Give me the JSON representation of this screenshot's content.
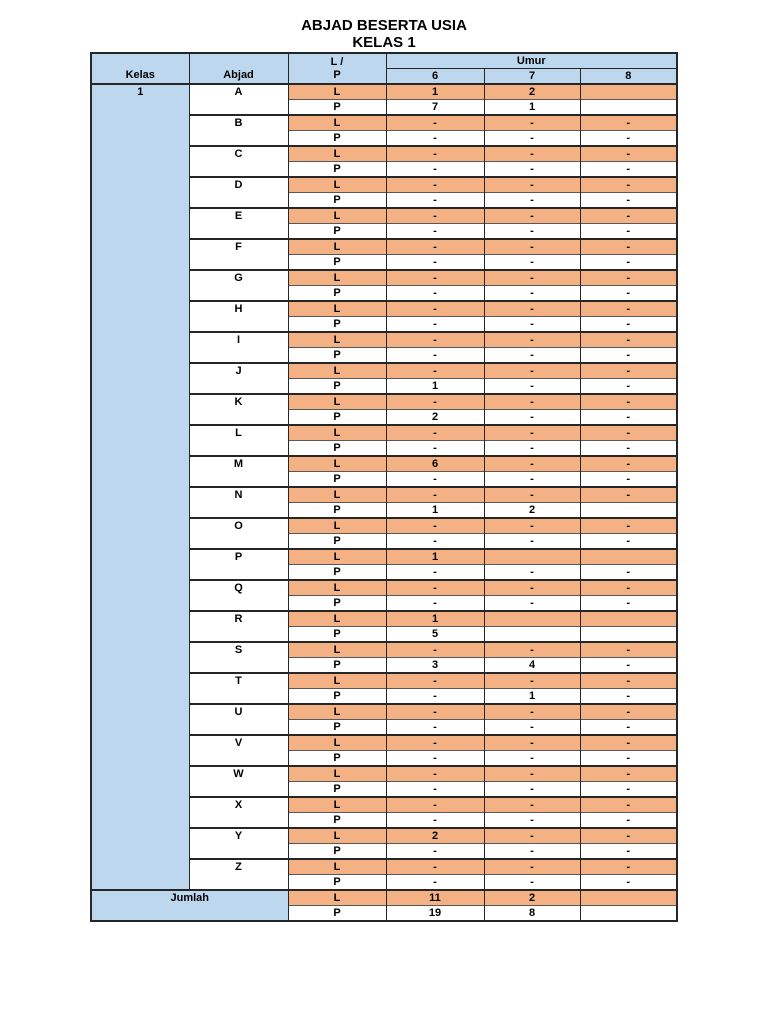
{
  "title": {
    "line1": "ABJAD BESERTA USIA",
    "line2": "KELAS 1"
  },
  "colors": {
    "header_blue": "#BDD7EE",
    "row_orange": "#F4B183",
    "border": "#262626"
  },
  "table": {
    "headers": {
      "kelas": "Kelas",
      "abjad": "Abjad",
      "lp_line1": "L /",
      "lp_line2": "P",
      "umur": "Umur",
      "ages": [
        "6",
        "7",
        "8"
      ]
    },
    "kelas_value": "1",
    "row_labels": {
      "l": "L",
      "p": "P"
    },
    "rows": [
      {
        "letter": "A",
        "l": [
          "1",
          "2",
          ""
        ],
        "p": [
          "7",
          "1",
          ""
        ]
      },
      {
        "letter": "B",
        "l": [
          "-",
          "-",
          "-"
        ],
        "p": [
          "-",
          "-",
          "-"
        ]
      },
      {
        "letter": "C",
        "l": [
          "-",
          "-",
          "-"
        ],
        "p": [
          "-",
          "-",
          "-"
        ]
      },
      {
        "letter": "D",
        "l": [
          "-",
          "-",
          "-"
        ],
        "p": [
          "-",
          "-",
          "-"
        ]
      },
      {
        "letter": "E",
        "l": [
          "-",
          "-",
          "-"
        ],
        "p": [
          "-",
          "-",
          "-"
        ]
      },
      {
        "letter": "F",
        "l": [
          "-",
          "-",
          "-"
        ],
        "p": [
          "-",
          "-",
          "-"
        ]
      },
      {
        "letter": "G",
        "l": [
          "-",
          "-",
          "-"
        ],
        "p": [
          "-",
          "-",
          "-"
        ]
      },
      {
        "letter": "H",
        "l": [
          "-",
          "-",
          "-"
        ],
        "p": [
          "-",
          "-",
          "-"
        ]
      },
      {
        "letter": "I",
        "l": [
          "-",
          "-",
          "-"
        ],
        "p": [
          "-",
          "-",
          "-"
        ]
      },
      {
        "letter": "J",
        "l": [
          "-",
          "-",
          "-"
        ],
        "p": [
          "1",
          "-",
          "-"
        ]
      },
      {
        "letter": "K",
        "l": [
          "-",
          "-",
          "-"
        ],
        "p": [
          "2",
          "-",
          "-"
        ]
      },
      {
        "letter": "L",
        "l": [
          "-",
          "-",
          "-"
        ],
        "p": [
          "-",
          "-",
          "-"
        ]
      },
      {
        "letter": "M",
        "l": [
          "6",
          "-",
          "-"
        ],
        "p": [
          "-",
          "-",
          "-"
        ]
      },
      {
        "letter": "N",
        "l": [
          "-",
          "-",
          "-"
        ],
        "p": [
          "1",
          "2",
          ""
        ]
      },
      {
        "letter": "O",
        "l": [
          "-",
          "-",
          "-"
        ],
        "p": [
          "-",
          "-",
          "-"
        ]
      },
      {
        "letter": "P",
        "l": [
          "1",
          "",
          ""
        ],
        "p": [
          "-",
          "-",
          "-"
        ]
      },
      {
        "letter": "Q",
        "l": [
          "-",
          "-",
          "-"
        ],
        "p": [
          "-",
          "-",
          "-"
        ]
      },
      {
        "letter": "R",
        "l": [
          "1",
          "",
          ""
        ],
        "p": [
          "5",
          "",
          ""
        ]
      },
      {
        "letter": "S",
        "l": [
          "-",
          "-",
          "-"
        ],
        "p": [
          "3",
          "4",
          "-"
        ]
      },
      {
        "letter": "T",
        "l": [
          "-",
          "-",
          "-"
        ],
        "p": [
          "-",
          "1",
          "-"
        ]
      },
      {
        "letter": "U",
        "l": [
          "-",
          "-",
          "-"
        ],
        "p": [
          "-",
          "-",
          "-"
        ]
      },
      {
        "letter": "V",
        "l": [
          "-",
          "-",
          "-"
        ],
        "p": [
          "-",
          "-",
          "-"
        ]
      },
      {
        "letter": "W",
        "l": [
          "-",
          "-",
          "-"
        ],
        "p": [
          "-",
          "-",
          "-"
        ]
      },
      {
        "letter": "X",
        "l": [
          "-",
          "-",
          "-"
        ],
        "p": [
          "-",
          "-",
          "-"
        ]
      },
      {
        "letter": "Y",
        "l": [
          "2",
          "-",
          "-"
        ],
        "p": [
          "-",
          "-",
          "-"
        ]
      },
      {
        "letter": "Z",
        "l": [
          "-",
          "-",
          "-"
        ],
        "p": [
          "-",
          "-",
          "-"
        ]
      }
    ],
    "jumlah": {
      "label": "Jumlah",
      "l": [
        "11",
        "2",
        ""
      ],
      "p": [
        "19",
        "8",
        ""
      ]
    }
  }
}
